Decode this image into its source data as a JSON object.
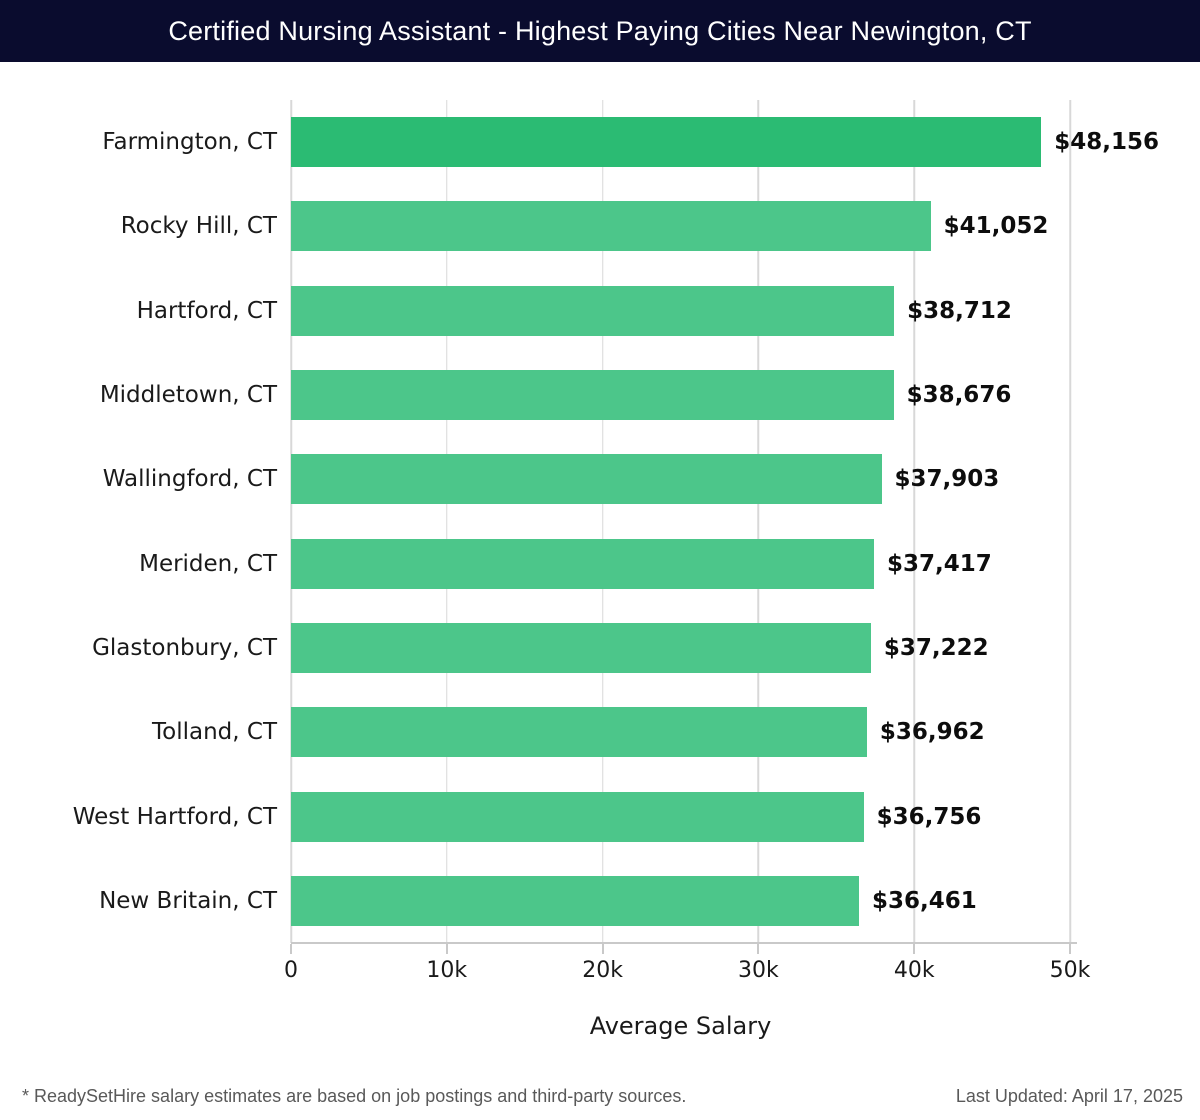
{
  "header": {
    "title": "Certified Nursing Assistant - Highest Paying Cities Near Newington, CT"
  },
  "chart_data": {
    "type": "bar",
    "orientation": "horizontal",
    "title": "Certified Nursing Assistant - Highest Paying Cities Near Newington, CT",
    "categories": [
      "Farmington, CT",
      "Rocky Hill, CT",
      "Hartford, CT",
      "Middletown, CT",
      "Wallingford, CT",
      "Meriden, CT",
      "Glastonbury, CT",
      "Tolland, CT",
      "West Hartford, CT",
      "New Britain, CT"
    ],
    "values": [
      48156,
      41052,
      38712,
      38676,
      37903,
      37417,
      37222,
      36962,
      36756,
      36461
    ],
    "value_labels": [
      "$48,156",
      "$41,052",
      "$38,712",
      "$38,676",
      "$37,903",
      "$37,417",
      "$37,222",
      "$36,962",
      "$36,756",
      "$36,461"
    ],
    "xlabel": "Average Salary",
    "ylabel": "",
    "xlim": [
      0,
      50000
    ],
    "x_tick_values": [
      0,
      10000,
      20000,
      30000,
      40000,
      50000
    ],
    "x_tick_labels": [
      "0",
      "10k",
      "20k",
      "30k",
      "40k",
      "50k"
    ],
    "grid": true,
    "highlight_index": 0
  },
  "footer": {
    "note": "* ReadySetHire salary estimates are based on job postings and third-party sources.",
    "last_updated": "Last Updated: April 17, 2025"
  },
  "colors": {
    "header_bg": "#0a0c2e",
    "header_text": "#ffffff",
    "bar_highlight": "#2bbb73",
    "bar_default": "#4cc68a",
    "gridline": "#d8d8d8",
    "axis_line": "#c9c9c9",
    "label_text": "#1a1a1a",
    "value_text": "#0d0d0d",
    "footer_text": "#595959"
  }
}
